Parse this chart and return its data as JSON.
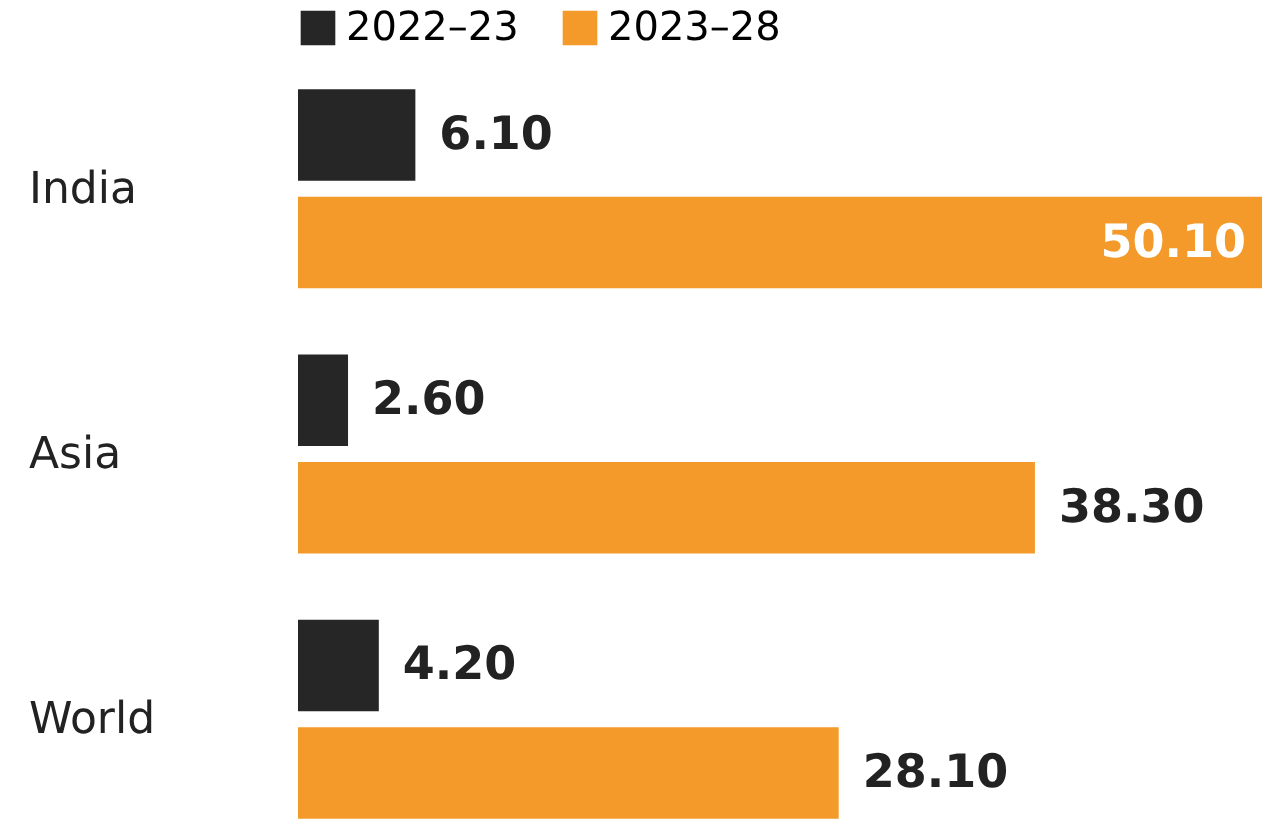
{
  "chart_data": {
    "type": "bar",
    "orientation": "horizontal",
    "categories": [
      "India",
      "Asia",
      "World"
    ],
    "series": [
      {
        "name": "2022–23",
        "color": "#262626",
        "values": [
          6.1,
          2.6,
          4.2
        ],
        "value_labels": [
          "6.10",
          "2.60",
          "4.20"
        ]
      },
      {
        "name": "2023–28",
        "color": "#f39a2b",
        "values": [
          50.1,
          38.3,
          28.1
        ],
        "value_labels": [
          "50.10",
          "38.30",
          "28.10"
        ]
      }
    ],
    "xlim": [
      0,
      50.1
    ],
    "tick_labels": "y",
    "legend": "top left",
    "grid": false
  }
}
